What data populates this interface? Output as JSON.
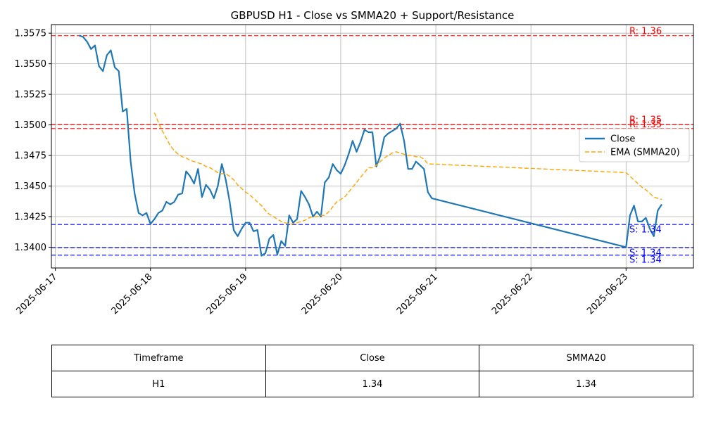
{
  "chart_data": {
    "type": "line",
    "title": "GBPUSD H1 - Close vs SMMA20 + Support/Resistance",
    "x_ticks": [
      "2025-06-17",
      "2025-06-18",
      "2025-06-19",
      "2025-06-20",
      "2025-06-21",
      "2025-06-22",
      "2025-06-23"
    ],
    "xlim": [
      "2025-06-16 23:00",
      "2025-06-23 17:00"
    ],
    "y_ticks": [
      "1.3400",
      "1.3425",
      "1.3450",
      "1.3475",
      "1.3500",
      "1.3525",
      "1.3550",
      "1.3575"
    ],
    "ylim": [
      1.3383,
      1.3582
    ],
    "grid": true,
    "legend_position": "center-right",
    "series": [
      {
        "name": "Close",
        "color": "#1f77b4",
        "style": "solid",
        "x": [
          "2025-06-17 06:00",
          "2025-06-17 07:00",
          "2025-06-17 08:00",
          "2025-06-17 09:00",
          "2025-06-17 10:00",
          "2025-06-17 11:00",
          "2025-06-17 12:00",
          "2025-06-17 13:00",
          "2025-06-17 14:00",
          "2025-06-17 15:00",
          "2025-06-17 16:00",
          "2025-06-17 17:00",
          "2025-06-17 18:00",
          "2025-06-17 19:00",
          "2025-06-17 20:00",
          "2025-06-17 21:00",
          "2025-06-17 22:00",
          "2025-06-17 23:00",
          "2025-06-18 00:00",
          "2025-06-18 01:00",
          "2025-06-18 02:00",
          "2025-06-18 03:00",
          "2025-06-18 04:00",
          "2025-06-18 05:00",
          "2025-06-18 06:00",
          "2025-06-18 07:00",
          "2025-06-18 08:00",
          "2025-06-18 09:00",
          "2025-06-18 10:00",
          "2025-06-18 11:00",
          "2025-06-18 12:00",
          "2025-06-18 13:00",
          "2025-06-18 14:00",
          "2025-06-18 15:00",
          "2025-06-18 16:00",
          "2025-06-18 17:00",
          "2025-06-18 18:00",
          "2025-06-18 19:00",
          "2025-06-18 20:00",
          "2025-06-18 21:00",
          "2025-06-18 22:00",
          "2025-06-18 23:00",
          "2025-06-19 00:00",
          "2025-06-19 01:00",
          "2025-06-19 02:00",
          "2025-06-19 03:00",
          "2025-06-19 04:00",
          "2025-06-19 05:00",
          "2025-06-19 06:00",
          "2025-06-19 07:00",
          "2025-06-19 08:00",
          "2025-06-19 09:00",
          "2025-06-19 10:00",
          "2025-06-19 11:00",
          "2025-06-19 12:00",
          "2025-06-19 13:00",
          "2025-06-19 14:00",
          "2025-06-19 15:00",
          "2025-06-19 16:00",
          "2025-06-19 17:00",
          "2025-06-19 18:00",
          "2025-06-19 19:00",
          "2025-06-19 20:00",
          "2025-06-19 21:00",
          "2025-06-19 22:00",
          "2025-06-19 23:00",
          "2025-06-20 00:00",
          "2025-06-20 01:00",
          "2025-06-20 02:00",
          "2025-06-20 03:00",
          "2025-06-20 04:00",
          "2025-06-20 05:00",
          "2025-06-20 06:00",
          "2025-06-20 07:00",
          "2025-06-20 08:00",
          "2025-06-20 09:00",
          "2025-06-20 10:00",
          "2025-06-20 11:00",
          "2025-06-20 12:00",
          "2025-06-20 13:00",
          "2025-06-20 14:00",
          "2025-06-20 15:00",
          "2025-06-20 16:00",
          "2025-06-20 17:00",
          "2025-06-20 18:00",
          "2025-06-20 19:00",
          "2025-06-20 20:00",
          "2025-06-20 21:00",
          "2025-06-20 22:00",
          "2025-06-20 23:00",
          "2025-06-23 00:00",
          "2025-06-23 01:00",
          "2025-06-23 02:00",
          "2025-06-23 03:00",
          "2025-06-23 04:00",
          "2025-06-23 05:00",
          "2025-06-23 06:00",
          "2025-06-23 07:00",
          "2025-06-23 08:00",
          "2025-06-23 09:00"
        ],
        "y": [
          1.3573,
          1.3572,
          1.3568,
          1.3562,
          1.3565,
          1.3548,
          1.3544,
          1.3557,
          1.3561,
          1.3547,
          1.3544,
          1.3511,
          1.3513,
          1.347,
          1.3444,
          1.3428,
          1.3426,
          1.3428,
          1.3419,
          1.3423,
          1.3428,
          1.343,
          1.3437,
          1.3435,
          1.3437,
          1.3443,
          1.3444,
          1.3462,
          1.3458,
          1.3452,
          1.3464,
          1.3441,
          1.3451,
          1.3447,
          1.344,
          1.345,
          1.3468,
          1.3455,
          1.3437,
          1.3414,
          1.3409,
          1.3415,
          1.342,
          1.342,
          1.3413,
          1.3414,
          1.3393,
          1.3395,
          1.3407,
          1.341,
          1.3394,
          1.3405,
          1.3401,
          1.3426,
          1.342,
          1.3423,
          1.3446,
          1.3441,
          1.3435,
          1.3425,
          1.3429,
          1.3425,
          1.3453,
          1.3457,
          1.3468,
          1.3463,
          1.346,
          1.3467,
          1.3476,
          1.3487,
          1.3478,
          1.3486,
          1.3496,
          1.3494,
          1.3494,
          1.3466,
          1.3475,
          1.349,
          1.3493,
          1.3495,
          1.3497,
          1.3501,
          1.3487,
          1.3464,
          1.3464,
          1.347,
          1.3467,
          1.3464,
          1.3445,
          1.344,
          1.34,
          1.3426,
          1.3434,
          1.3421,
          1.3421,
          1.3424,
          1.3415,
          1.3409,
          1.343,
          1.3435
        ]
      },
      {
        "name": "EMA (SMMA20)",
        "color": "#ffa500",
        "style": "dashed",
        "x": [
          "2025-06-18 01:00",
          "2025-06-18 02:00",
          "2025-06-18 03:00",
          "2025-06-18 04:00",
          "2025-06-18 05:00",
          "2025-06-18 06:00",
          "2025-06-18 07:00",
          "2025-06-18 08:00",
          "2025-06-18 09:00",
          "2025-06-18 10:00",
          "2025-06-18 11:00",
          "2025-06-18 12:00",
          "2025-06-18 13:00",
          "2025-06-18 14:00",
          "2025-06-18 15:00",
          "2025-06-18 16:00",
          "2025-06-18 17:00",
          "2025-06-18 18:00",
          "2025-06-18 19:00",
          "2025-06-18 20:00",
          "2025-06-18 21:00",
          "2025-06-18 22:00",
          "2025-06-18 23:00",
          "2025-06-19 00:00",
          "2025-06-19 01:00",
          "2025-06-19 02:00",
          "2025-06-19 03:00",
          "2025-06-19 04:00",
          "2025-06-19 05:00",
          "2025-06-19 06:00",
          "2025-06-19 07:00",
          "2025-06-19 08:00",
          "2025-06-19 09:00",
          "2025-06-19 10:00",
          "2025-06-19 11:00",
          "2025-06-19 12:00",
          "2025-06-19 13:00",
          "2025-06-19 14:00",
          "2025-06-19 15:00",
          "2025-06-19 16:00",
          "2025-06-19 17:00",
          "2025-06-19 18:00",
          "2025-06-19 19:00",
          "2025-06-19 20:00",
          "2025-06-19 21:00",
          "2025-06-19 22:00",
          "2025-06-19 23:00",
          "2025-06-20 00:00",
          "2025-06-20 01:00",
          "2025-06-20 02:00",
          "2025-06-20 03:00",
          "2025-06-20 04:00",
          "2025-06-20 05:00",
          "2025-06-20 06:00",
          "2025-06-20 07:00",
          "2025-06-20 08:00",
          "2025-06-20 09:00",
          "2025-06-20 10:00",
          "2025-06-20 11:00",
          "2025-06-20 12:00",
          "2025-06-20 13:00",
          "2025-06-20 14:00",
          "2025-06-20 15:00",
          "2025-06-20 16:00",
          "2025-06-20 17:00",
          "2025-06-20 18:00",
          "2025-06-20 19:00",
          "2025-06-20 20:00",
          "2025-06-20 21:00",
          "2025-06-20 22:00",
          "2025-06-20 23:00",
          "2025-06-23 00:00",
          "2025-06-23 01:00",
          "2025-06-23 02:00",
          "2025-06-23 03:00",
          "2025-06-23 04:00",
          "2025-06-23 05:00",
          "2025-06-23 06:00",
          "2025-06-23 07:00",
          "2025-06-23 08:00",
          "2025-06-23 09:00"
        ],
        "y": [
          1.351,
          1.3502,
          1.3495,
          1.3489,
          1.3483,
          1.3479,
          1.3476,
          1.3474,
          1.3473,
          1.3471,
          1.347,
          1.3469,
          1.3468,
          1.3466,
          1.3465,
          1.3463,
          1.3461,
          1.346,
          1.346,
          1.3458,
          1.3455,
          1.3451,
          1.3448,
          1.3445,
          1.3443,
          1.344,
          1.3437,
          1.3434,
          1.343,
          1.3427,
          1.3425,
          1.3423,
          1.3421,
          1.342,
          1.3419,
          1.3419,
          1.342,
          1.3421,
          1.3422,
          1.3424,
          1.3425,
          1.3425,
          1.3426,
          1.3426,
          1.3429,
          1.3433,
          1.3437,
          1.3439,
          1.3441,
          1.3445,
          1.3449,
          1.3453,
          1.3457,
          1.3461,
          1.3465,
          1.3465,
          1.3467,
          1.347,
          1.3473,
          1.3475,
          1.3477,
          1.3478,
          1.3477,
          1.3476,
          1.3475,
          1.3475,
          1.3474,
          1.3474,
          1.3472,
          1.3468,
          1.3468,
          1.3461,
          1.3458,
          1.3455,
          1.3452,
          1.3449,
          1.3447,
          1.3444,
          1.3441,
          1.344,
          1.3439
        ]
      }
    ],
    "levels": [
      {
        "kind": "resistance",
        "label": "R: 1.36",
        "value": 1.3573,
        "color": "#ff0000"
      },
      {
        "kind": "resistance",
        "label": "R: 1.35",
        "value": 1.35005,
        "color": "#ff0000"
      },
      {
        "kind": "resistance",
        "label": "R: 1.35",
        "value": 1.3497,
        "color": "#ff0000"
      },
      {
        "kind": "support",
        "label": "S: 1.34",
        "value": 1.34185,
        "color": "#0000ff"
      },
      {
        "kind": "support",
        "label": "S: 1.34",
        "value": 1.33995,
        "color": "#0000ff"
      },
      {
        "kind": "support",
        "label": "S: 1.34",
        "value": 1.33935,
        "color": "#0000ff"
      }
    ]
  },
  "table": {
    "headers": [
      "Timeframe",
      "Close",
      "SMMA20"
    ],
    "row": [
      "H1",
      "1.34",
      "1.34"
    ]
  }
}
